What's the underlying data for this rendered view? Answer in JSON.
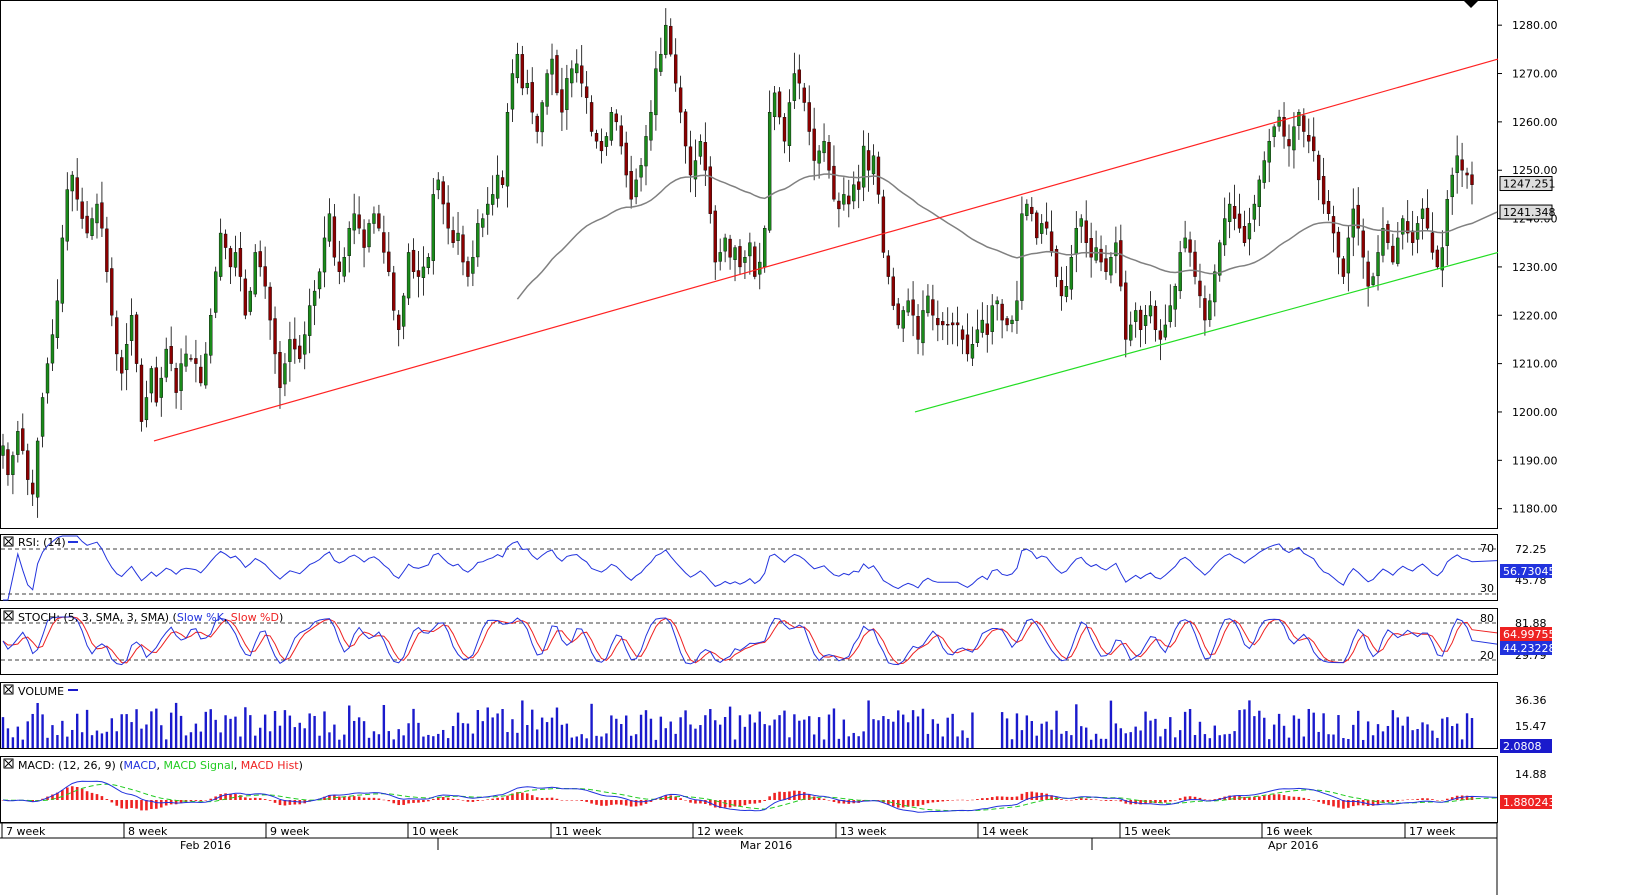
{
  "chart_data": [
    {
      "panel": "price",
      "type": "candlestick",
      "yticks": [
        1180,
        1190,
        1200,
        1210,
        1220,
        1230,
        1240,
        1250,
        1260,
        1270,
        1280
      ],
      "ylim": [
        1176,
        1285
      ],
      "ytick_labels": [
        "1180.00",
        "1190.00",
        "1200.00",
        "1210.00",
        "1220.00",
        "1230.00",
        "1240.00",
        "1250.00",
        "1260.00",
        "1270.00",
        "1280.00"
      ],
      "last_price": 1247.251,
      "last_price_label": "1247.251",
      "ma_value": 1241.348,
      "ma_label": "1241.348",
      "colors": {
        "up": "#1a8a1a",
        "down": "#8b0000",
        "ma": "#808080",
        "resistance": "#ff2222",
        "support": "#22dd22",
        "tag": "#dddddd"
      },
      "closes": [
        1193,
        1187,
        1191,
        1196,
        1192,
        1186,
        1183,
        1194,
        1203,
        1210,
        1216,
        1223,
        1236,
        1246,
        1249,
        1244,
        1240,
        1237,
        1240,
        1243,
        1238,
        1229,
        1220,
        1212,
        1208,
        1214,
        1220,
        1210,
        1198,
        1203,
        1209,
        1202,
        1207,
        1213,
        1210,
        1204,
        1210,
        1212,
        1211,
        1210,
        1206,
        1212,
        1220,
        1229,
        1237,
        1234,
        1230,
        1233,
        1228,
        1220,
        1225,
        1233,
        1230,
        1226,
        1219,
        1212,
        1205,
        1210,
        1215,
        1213,
        1211,
        1216,
        1222,
        1225,
        1229,
        1236,
        1241,
        1232,
        1229,
        1232,
        1238,
        1241,
        1238,
        1234,
        1239,
        1241,
        1238,
        1233,
        1229,
        1221,
        1217,
        1224,
        1233,
        1229,
        1228,
        1230,
        1232,
        1245,
        1248,
        1243,
        1238,
        1235,
        1237,
        1231,
        1228,
        1232,
        1239,
        1240,
        1243,
        1245,
        1249,
        1247,
        1262,
        1270,
        1274,
        1267,
        1268,
        1262,
        1258,
        1264,
        1270,
        1273,
        1266,
        1262,
        1269,
        1271,
        1272,
        1268,
        1265,
        1258,
        1256,
        1254,
        1257,
        1262,
        1260,
        1255,
        1249,
        1244,
        1248,
        1251,
        1257,
        1262,
        1271,
        1274,
        1280,
        1274,
        1268,
        1262,
        1255,
        1249,
        1252,
        1256,
        1250,
        1241,
        1231,
        1233,
        1236,
        1232,
        1234,
        1230,
        1232,
        1235,
        1228,
        1231,
        1238,
        1262,
        1266,
        1261,
        1256,
        1264,
        1270,
        1268,
        1264,
        1258,
        1252,
        1254,
        1256,
        1250,
        1244,
        1242,
        1245,
        1243,
        1247,
        1246,
        1255,
        1250,
        1253,
        1245,
        1233,
        1228,
        1222,
        1218,
        1221,
        1223,
        1220,
        1215,
        1221,
        1224,
        1220,
        1218,
        1218,
        1218,
        1218,
        1218,
        1215,
        1212,
        1214,
        1217,
        1219,
        1216,
        1222,
        1223,
        1219,
        1218,
        1219,
        1223,
        1241,
        1243,
        1241,
        1236,
        1239,
        1238,
        1233,
        1228,
        1224,
        1226,
        1232,
        1238,
        1240,
        1235,
        1232,
        1234,
        1231,
        1229,
        1232,
        1235,
        1226,
        1215,
        1218,
        1221,
        1217,
        1220,
        1222,
        1217,
        1215,
        1218,
        1222,
        1226,
        1233,
        1236,
        1233,
        1228,
        1224,
        1219,
        1223,
        1229,
        1235,
        1240,
        1243,
        1240,
        1238,
        1235,
        1239,
        1243,
        1248,
        1252,
        1256,
        1259,
        1261,
        1257,
        1255,
        1259,
        1262,
        1258,
        1256,
        1254,
        1248,
        1243,
        1241,
        1237,
        1232,
        1228,
        1236,
        1242,
        1238,
        1232,
        1226,
        1228,
        1233,
        1238,
        1235,
        1231,
        1236,
        1240,
        1237,
        1235,
        1239,
        1242,
        1238,
        1233,
        1230,
        1234,
        1244,
        1249,
        1253,
        1250,
        1249,
        1247
      ],
      "resistance_line": {
        "from": [
          154,
          1194
        ],
        "to": [
          1498,
          1273
        ]
      },
      "support_line": {
        "from": [
          915,
          1200
        ],
        "to": [
          1498,
          1233
        ]
      },
      "ma200_start_slot": 104
    },
    {
      "panel": "rsi",
      "type": "line",
      "legend": "RSI: (14)",
      "levels": [
        70,
        30
      ],
      "level_labels": [
        "70",
        "30"
      ],
      "scale_labels": [
        "72.25",
        "45.78"
      ],
      "value": 56.73045,
      "value_label": "56.73045",
      "color": "#2233dd"
    },
    {
      "panel": "stoch",
      "type": "line",
      "legend_prefix": "STOCH: (5, 3, SMA, 3, SMA) (",
      "legend_k": "Slow %K",
      "legend_d": "Slow %D",
      "legend_suffix": ")",
      "levels": [
        80,
        20
      ],
      "level_labels": [
        "80",
        "20"
      ],
      "scale_labels": [
        "81.88",
        "29.79"
      ],
      "value_d": 64.99755,
      "value_d_label": "64.99755",
      "value_k": 44.23228,
      "value_k_label": "44.23228",
      "colors": {
        "k": "#2233dd",
        "d": "#ee2222"
      }
    },
    {
      "panel": "volume",
      "type": "bar",
      "legend": "VOLUME",
      "scale_labels": [
        "36.36",
        "15.47"
      ],
      "value_label": "2.0808",
      "color": "#1a1acc"
    },
    {
      "panel": "macd",
      "type": "line+bar",
      "legend_prefix": "MACD: (12, 26, 9) (",
      "legend_macd": "MACD",
      "legend_signal": "MACD Signal",
      "legend_hist": "MACD Hist",
      "legend_suffix": ")",
      "scale_labels": [
        "14.88"
      ],
      "value_label": "1.8802439",
      "colors": {
        "macd": "#2233dd",
        "signal": "#22cc22",
        "hist": "#ee2222"
      }
    }
  ],
  "time_axis": {
    "weeks": [
      "7 week",
      "8 week",
      "9 week",
      "10 week",
      "11 week",
      "12 week",
      "13 week",
      "14 week",
      "15 week",
      "16 week",
      "17 week"
    ],
    "months": [
      "Feb 2016",
      "Mar 2016",
      "Apr 2016"
    ]
  },
  "close_icon": "close-box-icon"
}
